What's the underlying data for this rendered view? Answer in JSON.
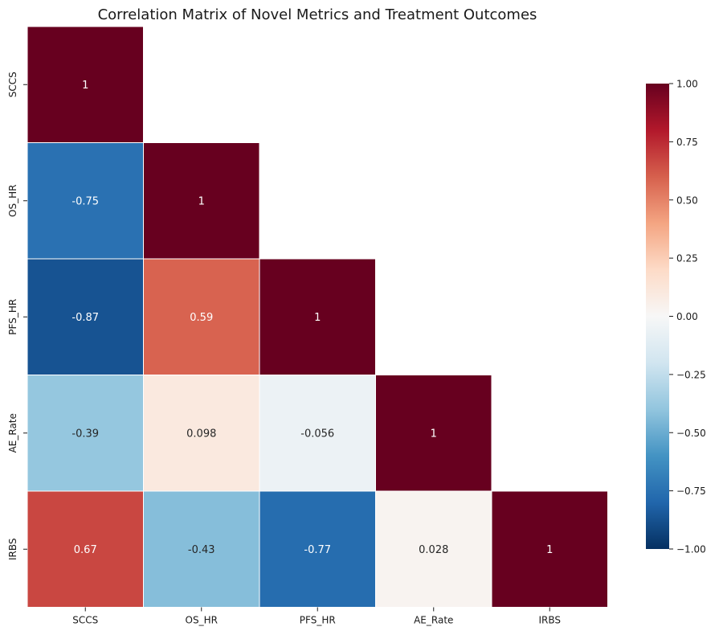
{
  "chart_data": {
    "type": "heatmap",
    "title": "Correlation Matrix of Novel Metrics and Treatment Outcomes",
    "xlabel": "",
    "ylabel": "",
    "variables": [
      "SCCS",
      "OS_HR",
      "PFS_HR",
      "AE_Rate",
      "IRBS"
    ],
    "mask": "upper-triangle",
    "cells": [
      {
        "row": "SCCS",
        "col": "SCCS",
        "value": 1,
        "label": "1"
      },
      {
        "row": "OS_HR",
        "col": "SCCS",
        "value": -0.75,
        "label": "-0.75"
      },
      {
        "row": "OS_HR",
        "col": "OS_HR",
        "value": 1,
        "label": "1"
      },
      {
        "row": "PFS_HR",
        "col": "SCCS",
        "value": -0.87,
        "label": "-0.87"
      },
      {
        "row": "PFS_HR",
        "col": "OS_HR",
        "value": 0.59,
        "label": "0.59"
      },
      {
        "row": "PFS_HR",
        "col": "PFS_HR",
        "value": 1,
        "label": "1"
      },
      {
        "row": "AE_Rate",
        "col": "SCCS",
        "value": -0.39,
        "label": "-0.39"
      },
      {
        "row": "AE_Rate",
        "col": "OS_HR",
        "value": 0.098,
        "label": "0.098"
      },
      {
        "row": "AE_Rate",
        "col": "PFS_HR",
        "value": -0.056,
        "label": "-0.056"
      },
      {
        "row": "AE_Rate",
        "col": "AE_Rate",
        "value": 1,
        "label": "1"
      },
      {
        "row": "IRBS",
        "col": "SCCS",
        "value": 0.67,
        "label": "0.67"
      },
      {
        "row": "IRBS",
        "col": "OS_HR",
        "value": -0.43,
        "label": "-0.43"
      },
      {
        "row": "IRBS",
        "col": "PFS_HR",
        "value": -0.77,
        "label": "-0.77"
      },
      {
        "row": "IRBS",
        "col": "AE_Rate",
        "value": 0.028,
        "label": "0.028"
      },
      {
        "row": "IRBS",
        "col": "IRBS",
        "value": 1,
        "label": "1"
      }
    ],
    "colorbar": {
      "range": [
        -1,
        1
      ],
      "ticks": [
        "1.00",
        "0.75",
        "0.50",
        "0.25",
        "0.00",
        "−0.25",
        "−0.50",
        "−0.75",
        "−1.00"
      ],
      "tick_values": [
        1,
        0.75,
        0.5,
        0.25,
        0,
        -0.25,
        -0.5,
        -0.75,
        -1
      ],
      "colormap": "RdBu_r",
      "stops": [
        {
          "v": -1.0,
          "color": "#053061"
        },
        {
          "v": -0.8,
          "color": "#2166ac"
        },
        {
          "v": -0.6,
          "color": "#4393c3"
        },
        {
          "v": -0.4,
          "color": "#92c5de"
        },
        {
          "v": -0.2,
          "color": "#d1e5f0"
        },
        {
          "v": 0.0,
          "color": "#f7f7f7"
        },
        {
          "v": 0.2,
          "color": "#fddbc7"
        },
        {
          "v": 0.4,
          "color": "#f4a582"
        },
        {
          "v": 0.6,
          "color": "#d6604d"
        },
        {
          "v": 0.8,
          "color": "#b2182b"
        },
        {
          "v": 1.0,
          "color": "#67001f"
        }
      ]
    },
    "grid": false,
    "legend": "colorbar-right"
  }
}
